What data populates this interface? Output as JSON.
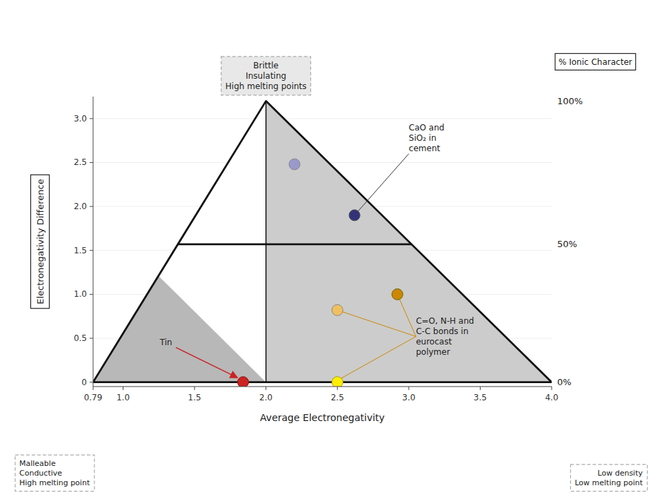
{
  "chart_data": {
    "type": "scatter",
    "xlabel": "Average Electronegativity",
    "ylabel": "Electronegativity Difference",
    "xlim": [
      0.79,
      4.0
    ],
    "ylim": [
      -0.05,
      3.25
    ],
    "xticks": [
      0.79,
      {
        "value": 1.0,
        "label": "1.0"
      },
      1.5,
      {
        "value": 2.0,
        "label": "2.0"
      },
      2.5,
      {
        "value": 3.0,
        "label": "3.0"
      },
      3.5,
      {
        "value": 4.0,
        "label": "4.0"
      }
    ],
    "yticks": [
      0,
      0.5,
      {
        "value": 1.0,
        "label": "1.0"
      },
      1.5,
      {
        "value": 2.0,
        "label": "2.0"
      },
      2.5,
      {
        "value": 3.0,
        "label": "3.0"
      }
    ],
    "x": [
      2.2,
      2.62,
      2.5,
      2.92,
      2.5,
      1.84
    ],
    "values": [
      2.48,
      1.9,
      0.82,
      1.0,
      0.0,
      0.0
    ],
    "colors": [
      "#9999cc",
      "#33337a",
      "#f0c060",
      "#cc8800",
      "#ffee00",
      "#cc2222"
    ],
    "edge_colors": [
      "#888888",
      "#555555",
      "#888888",
      "#666600",
      "#aaa000",
      "#881111"
    ],
    "background": "#ffffff",
    "regions": [
      {
        "points": [
          [
            0.79,
            0.0
          ],
          [
            4.0,
            0.0
          ],
          [
            2.0,
            3.2
          ]
        ],
        "color": "#d8d8d8"
      },
      {
        "points": [
          [
            0.79,
            0.0
          ],
          [
            2.0,
            0.0
          ],
          [
            2.0,
            3.2
          ]
        ],
        "color": "#ffffff"
      },
      {
        "points": [
          [
            2.0,
            0.0
          ],
          [
            4.0,
            0.0
          ],
          [
            2.0,
            3.2
          ]
        ],
        "color": "#cccccc"
      },
      {
        "points": [
          [
            0.79,
            0.0
          ],
          [
            2.0,
            0.0
          ],
          [
            1.24753125,
            1.21
          ]
        ],
        "color": "#b8b8b8"
      }
    ],
    "lines": [
      {
        "points": [
          [
            0.79,
            0.0
          ],
          [
            4.0,
            0.0
          ],
          [
            2.0,
            3.2
          ],
          [
            0.79,
            0.0
          ]
        ]
      },
      {
        "points": [
          [
            2.0,
            0.0
          ],
          [
            2.0,
            3.2
          ]
        ]
      },
      {
        "points": [
          [
            1.38365625,
            1.57
          ],
          [
            3.01875,
            1.57
          ]
        ]
      }
    ],
    "ionic_scale_label": "% Ionic Character",
    "ionic_scale": [
      {
        "y": 0.0,
        "label": "0%"
      },
      {
        "y": 1.57,
        "label": "50%"
      },
      {
        "y": 3.2,
        "label": "100%"
      }
    ],
    "annotations": [
      {
        "text": "CaO and\nSiO₂ in\ncement",
        "x": 3.0,
        "y": 2.6,
        "targets": [
          [
            2.62,
            1.9
          ]
        ],
        "color": "#333333",
        "arrow": false
      },
      {
        "text": "Tin",
        "x": 1.3,
        "y": 0.45,
        "targets": [
          [
            1.84,
            0.02
          ]
        ],
        "color": "#cc2222",
        "arrow": true
      },
      {
        "text": "C=O, N-H and\nC-C bonds in\neurocast\npolymer",
        "x": 3.05,
        "y": 0.52,
        "targets": [
          [
            2.5,
            0.02
          ],
          [
            2.5,
            0.82
          ],
          [
            2.92,
            1.0
          ]
        ],
        "color": "#cc8800",
        "arrow": false
      }
    ],
    "text_boxes": [
      "Brittle\nInsulating\nHigh melting points",
      "Malleable\nConductive\nHigh melting point",
      "Low density\nLow melting point"
    ]
  }
}
